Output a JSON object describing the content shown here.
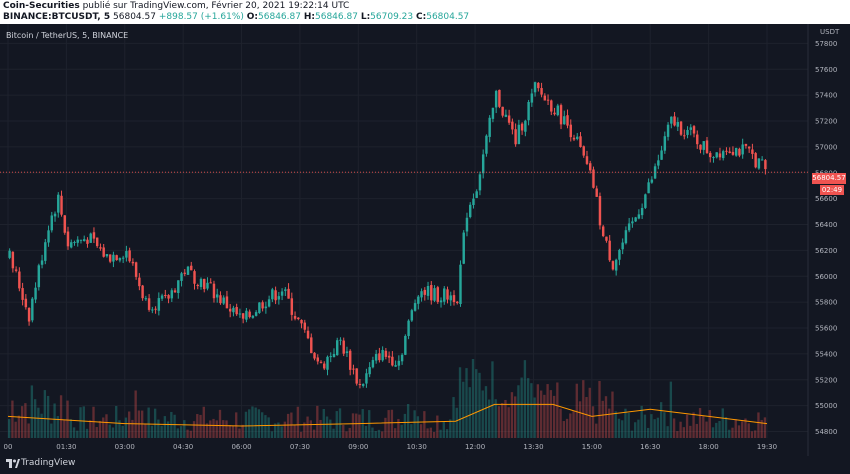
{
  "header": {
    "author": "Coin-Securities",
    "published": "publié sur TradingView.com, Février 20, 2021 19:22:14 UTC",
    "ticker": "BINANCE:BTCUSDT, 5",
    "last": "56804.57",
    "change": "+898.57 (+1.61%)",
    "o_label": "O:",
    "o": "56846.87",
    "h_label": "H:",
    "h": "56846.87",
    "l_label": "L:",
    "l": "56709.23",
    "c_label": "C:",
    "c": "56804.57"
  },
  "symbol_label": "Bitcoin / TetherUS, 5, BINANCE",
  "currency": "USDT",
  "last_price_label": "56804.57",
  "countdown": "02:49",
  "footer": {
    "brand": "TradingView"
  },
  "colors": {
    "up": "#26a69a",
    "down": "#ef5350",
    "background": "#131722",
    "volume_ma": "#ff9800"
  },
  "chart_data": {
    "type": "candlestick",
    "interval": "5",
    "ylim": [
      54750,
      57950
    ],
    "y_ticks": [
      57800,
      57600,
      57400,
      57200,
      57000,
      56800,
      56600,
      56400,
      56200,
      56000,
      55800,
      55600,
      55400,
      55200,
      55000,
      54800
    ],
    "x_ticks": [
      "00",
      "01:30",
      "03:00",
      "04:30",
      "06:00",
      "07:30",
      "09:00",
      "10:30",
      "12:00",
      "13:30",
      "15:00",
      "16:30",
      "18:00",
      "19:30"
    ],
    "last_price": 56804.57,
    "close_path": [
      [
        "00:00",
        56150
      ],
      [
        "00:30",
        55700
      ],
      [
        "01:00",
        56400
      ],
      [
        "01:15",
        56600
      ],
      [
        "01:30",
        56250
      ],
      [
        "02:00",
        56300
      ],
      [
        "02:30",
        56150
      ],
      [
        "03:00",
        56200
      ],
      [
        "03:30",
        55800
      ],
      [
        "04:00",
        55800
      ],
      [
        "04:30",
        56050
      ],
      [
        "05:00",
        55950
      ],
      [
        "05:30",
        55800
      ],
      [
        "06:00",
        55650
      ],
      [
        "06:30",
        55800
      ],
      [
        "07:00",
        55900
      ],
      [
        "07:30",
        55600
      ],
      [
        "08:00",
        55300
      ],
      [
        "08:30",
        55500
      ],
      [
        "09:00",
        55150
      ],
      [
        "09:30",
        55400
      ],
      [
        "10:00",
        55350
      ],
      [
        "10:30",
        55900
      ],
      [
        "11:00",
        55850
      ],
      [
        "11:30",
        55850
      ],
      [
        "11:45",
        56500
      ],
      [
        "12:00",
        56700
      ],
      [
        "12:30",
        57400
      ],
      [
        "13:00",
        57050
      ],
      [
        "13:30",
        57450
      ],
      [
        "14:00",
        57300
      ],
      [
        "14:30",
        57100
      ],
      [
        "15:00",
        56700
      ],
      [
        "15:15",
        56300
      ],
      [
        "15:30",
        56100
      ],
      [
        "16:00",
        56400
      ],
      [
        "16:30",
        56750
      ],
      [
        "17:00",
        57200
      ],
      [
        "17:30",
        57100
      ],
      [
        "18:00",
        56950
      ],
      [
        "18:30",
        57000
      ],
      [
        "19:00",
        56950
      ],
      [
        "19:30",
        56805
      ]
    ],
    "volume_range": [
      0,
      100
    ],
    "volume_ma_path": [
      [
        "00:00",
        18
      ],
      [
        "03:00",
        12
      ],
      [
        "06:00",
        10
      ],
      [
        "09:00",
        12
      ],
      [
        "11:30",
        14
      ],
      [
        "12:30",
        28
      ],
      [
        "14:00",
        28
      ],
      [
        "15:00",
        18
      ],
      [
        "16:30",
        24
      ],
      [
        "18:00",
        18
      ],
      [
        "19:30",
        12
      ]
    ]
  }
}
